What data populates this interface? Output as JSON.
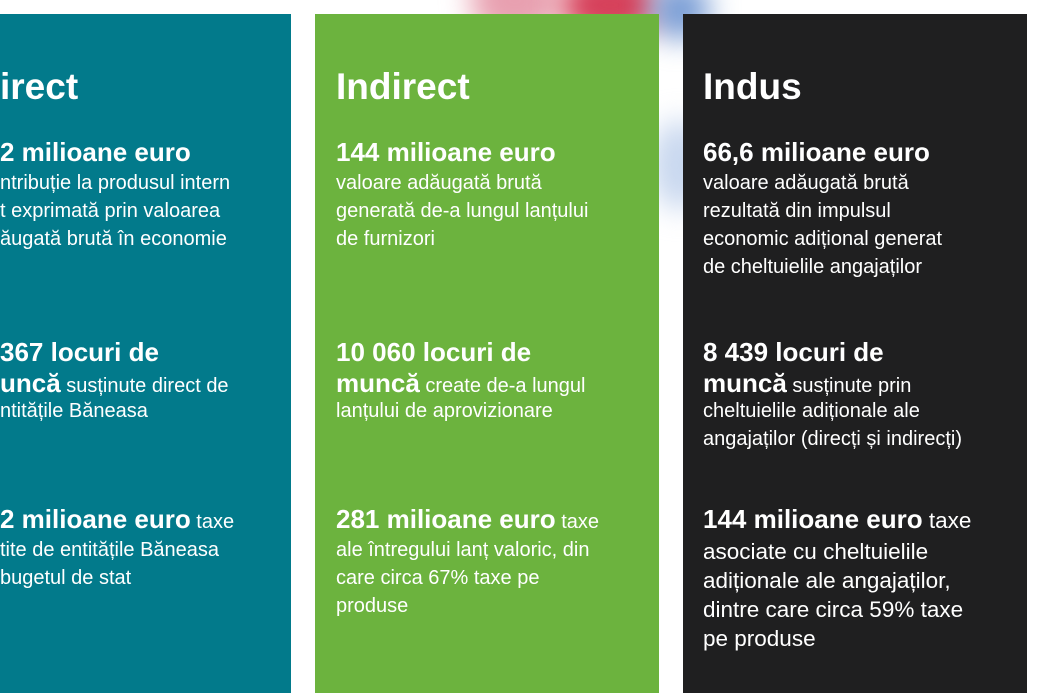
{
  "columns": [
    {
      "title": "irect",
      "blocks": [
        {
          "lines": [
            {
              "bold": "2 milioane euro"
            },
            {
              "regular": "ntribuție la produsul intern"
            },
            {
              "regular": "t exprimată prin valoarea"
            },
            {
              "regular": "ăugată brută în economie"
            }
          ]
        },
        {
          "lines": [
            {
              "bold": "367 locuri de"
            },
            {
              "bold": "uncă",
              "regular": " susținute direct de"
            },
            {
              "regular": "ntitățile Băneasa"
            }
          ]
        },
        {
          "lines": [
            {
              "bold": "2 milioane euro",
              "regular": " taxe"
            },
            {
              "regular": "tite de entitățile Băneasa"
            },
            {
              "regular": "bugetul de stat"
            }
          ]
        }
      ]
    },
    {
      "title": "Indirect",
      "blocks": [
        {
          "lines": [
            {
              "bold": "144 milioane euro"
            },
            {
              "regular": "valoare adăugată brută"
            },
            {
              "regular": "generată de-a lungul lanțului"
            },
            {
              "regular": "de furnizori"
            }
          ]
        },
        {
          "lines": [
            {
              "bold": "10 060 locuri de"
            },
            {
              "bold": "muncă",
              "regular": " create de-a lungul"
            },
            {
              "regular": "lanțului de aprovizionare"
            }
          ]
        },
        {
          "lines": [
            {
              "bold": "281 milioane euro",
              "regular": " taxe"
            },
            {
              "regular": "ale întregului lanț valoric, din"
            },
            {
              "regular": "care circa 67% taxe pe"
            },
            {
              "regular": "produse"
            }
          ]
        }
      ]
    },
    {
      "title": "Indus",
      "blocks": [
        {
          "lines": [
            {
              "bold": "66,6 milioane euro"
            },
            {
              "regular": "valoare adăugată brută"
            },
            {
              "regular": "rezultată din impulsul"
            },
            {
              "regular": "economic adițional generat"
            },
            {
              "regular": "de cheltuielile angajaților"
            }
          ]
        },
        {
          "lines": [
            {
              "bold": "8 439 locuri de"
            },
            {
              "bold": "muncă",
              "regular": " susținute prin"
            },
            {
              "regular": "cheltuielile adiționale ale"
            },
            {
              "regular": "angajaților (direcți și indirecți)"
            }
          ]
        },
        {
          "lines": [
            {
              "bold": "144 milioane euro",
              "regular": " taxe"
            },
            {
              "regular": "asociate cu cheltuielile"
            },
            {
              "regular": "adiționale ale angajaților,"
            },
            {
              "regular": "dintre care circa 59% taxe"
            },
            {
              "regular": "pe produse"
            }
          ]
        }
      ]
    }
  ]
}
